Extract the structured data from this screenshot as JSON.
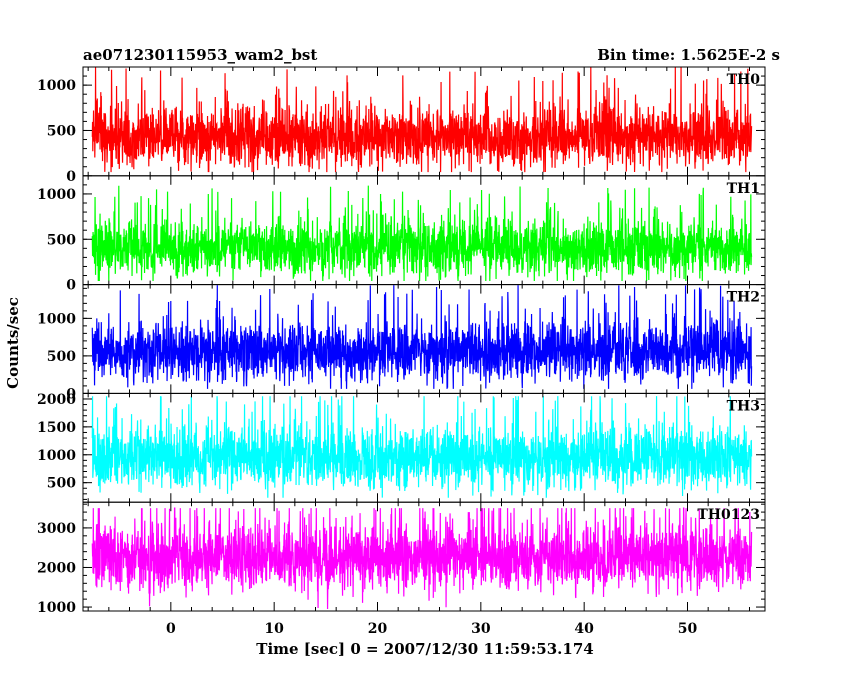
{
  "header": {
    "title": "ae071230115953_wam2_bst",
    "bin_time": "Bin time: 1.5625E-2 s"
  },
  "chart_data": {
    "type": "line",
    "xlabel": "Time [sec] 0 = 2007/12/30 11:59:53.174",
    "ylabel": "Counts/sec",
    "xlim": [
      -8.5,
      57.5
    ],
    "data_x_range": [
      -7.6,
      56.2
    ],
    "x_ticks": [
      0,
      10,
      20,
      30,
      40,
      50
    ],
    "x_tick_labels": [
      "0",
      "10",
      "20",
      "30",
      "40",
      "50"
    ],
    "grid": false,
    "legend": "none",
    "panels": [
      {
        "name": "TH0",
        "color": "#ff0000",
        "ylim": [
          0,
          1200
        ],
        "y_ticks": [
          0,
          500,
          1000
        ],
        "y_tick_labels": [
          "0",
          "500",
          "1000"
        ],
        "mean": 430,
        "spread": 170,
        "max": 1200,
        "min": 40
      },
      {
        "name": "TH1",
        "color": "#00ff00",
        "ylim": [
          0,
          1200
        ],
        "y_ticks": [
          0,
          500,
          1000
        ],
        "y_tick_labels": [
          "0",
          "500",
          "1000"
        ],
        "mean": 400,
        "spread": 150,
        "max": 1150,
        "min": 40
      },
      {
        "name": "TH2",
        "color": "#0000ff",
        "ylim": [
          0,
          1450
        ],
        "y_ticks": [
          0,
          500,
          1000
        ],
        "y_tick_labels": [
          "0",
          "500",
          "1000"
        ],
        "mean": 560,
        "spread": 200,
        "max": 1450,
        "min": 60
      },
      {
        "name": "TH3",
        "color": "#00ffff",
        "ylim": [
          150,
          2100
        ],
        "y_ticks": [
          500,
          1000,
          1500,
          2000
        ],
        "y_tick_labels": [
          "500",
          "1000",
          "1500",
          "2000"
        ],
        "mean": 950,
        "spread": 280,
        "max": 2050,
        "min": 230
      },
      {
        "name": "TH0123",
        "color": "#ff00ff",
        "ylim": [
          900,
          3650
        ],
        "y_ticks": [
          1000,
          2000,
          3000
        ],
        "y_tick_labels": [
          "1000",
          "2000",
          "3000"
        ],
        "mean": 2250,
        "spread": 420,
        "max": 3500,
        "min": 950
      }
    ]
  }
}
